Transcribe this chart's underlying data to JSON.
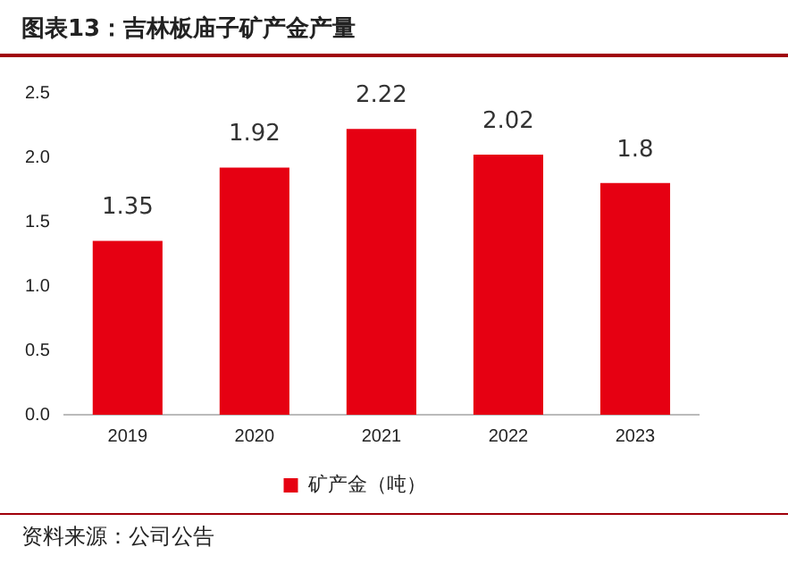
{
  "chart_data": {
    "type": "bar",
    "title": "图表13：吉林板庙子矿产金产量",
    "categories": [
      "2019",
      "2020",
      "2021",
      "2022",
      "2023"
    ],
    "series": [
      {
        "name": "矿产金（吨）",
        "color": "#e60012",
        "values": [
          1.35,
          1.92,
          2.22,
          2.02,
          1.8
        ]
      }
    ],
    "ylim": [
      0,
      2.5
    ],
    "yticks": [
      {
        "value": 0,
        "label": "0.0"
      },
      {
        "value": 0.5,
        "label": "0.5"
      },
      {
        "value": 1,
        "label": "1.0"
      },
      {
        "value": 1.5,
        "label": "1.5"
      },
      {
        "value": 2,
        "label": "2.0"
      },
      {
        "value": 2.5,
        "label": "2.5"
      }
    ],
    "grid": false,
    "legend": "bottom",
    "data_labels": true,
    "annotations": [
      "资料来源：公司公告"
    ]
  }
}
